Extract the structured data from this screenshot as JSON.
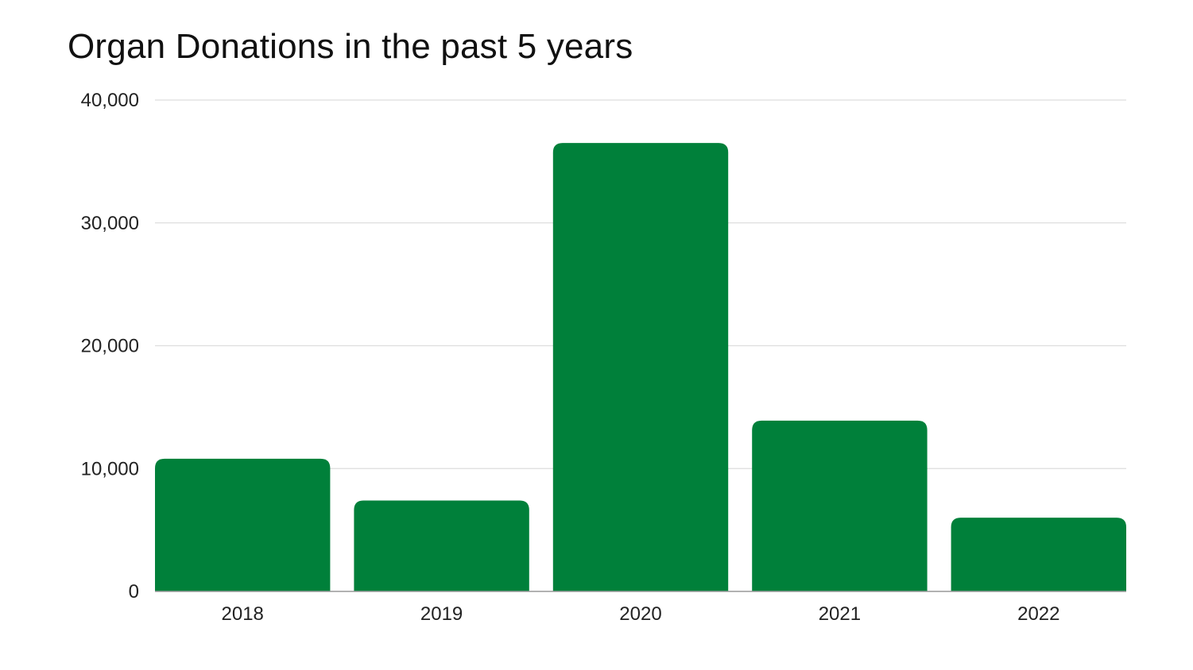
{
  "chart_data": {
    "type": "bar",
    "title": "Organ Donations in the past 5 years",
    "xlabel": "",
    "ylabel": "",
    "categories": [
      "2018",
      "2019",
      "2020",
      "2021",
      "2022"
    ],
    "values": [
      10800,
      7400,
      36500,
      13900,
      6000
    ],
    "ylim": [
      0,
      40000
    ],
    "yticks": [
      0,
      10000,
      20000,
      30000,
      40000
    ],
    "ytick_labels": [
      "0",
      "10,000",
      "20,000",
      "30,000",
      "40,000"
    ],
    "grid": true,
    "legend": "none",
    "colors": {
      "bar": "#00803a",
      "grid": "#dddddd",
      "axis": "#999999"
    }
  }
}
